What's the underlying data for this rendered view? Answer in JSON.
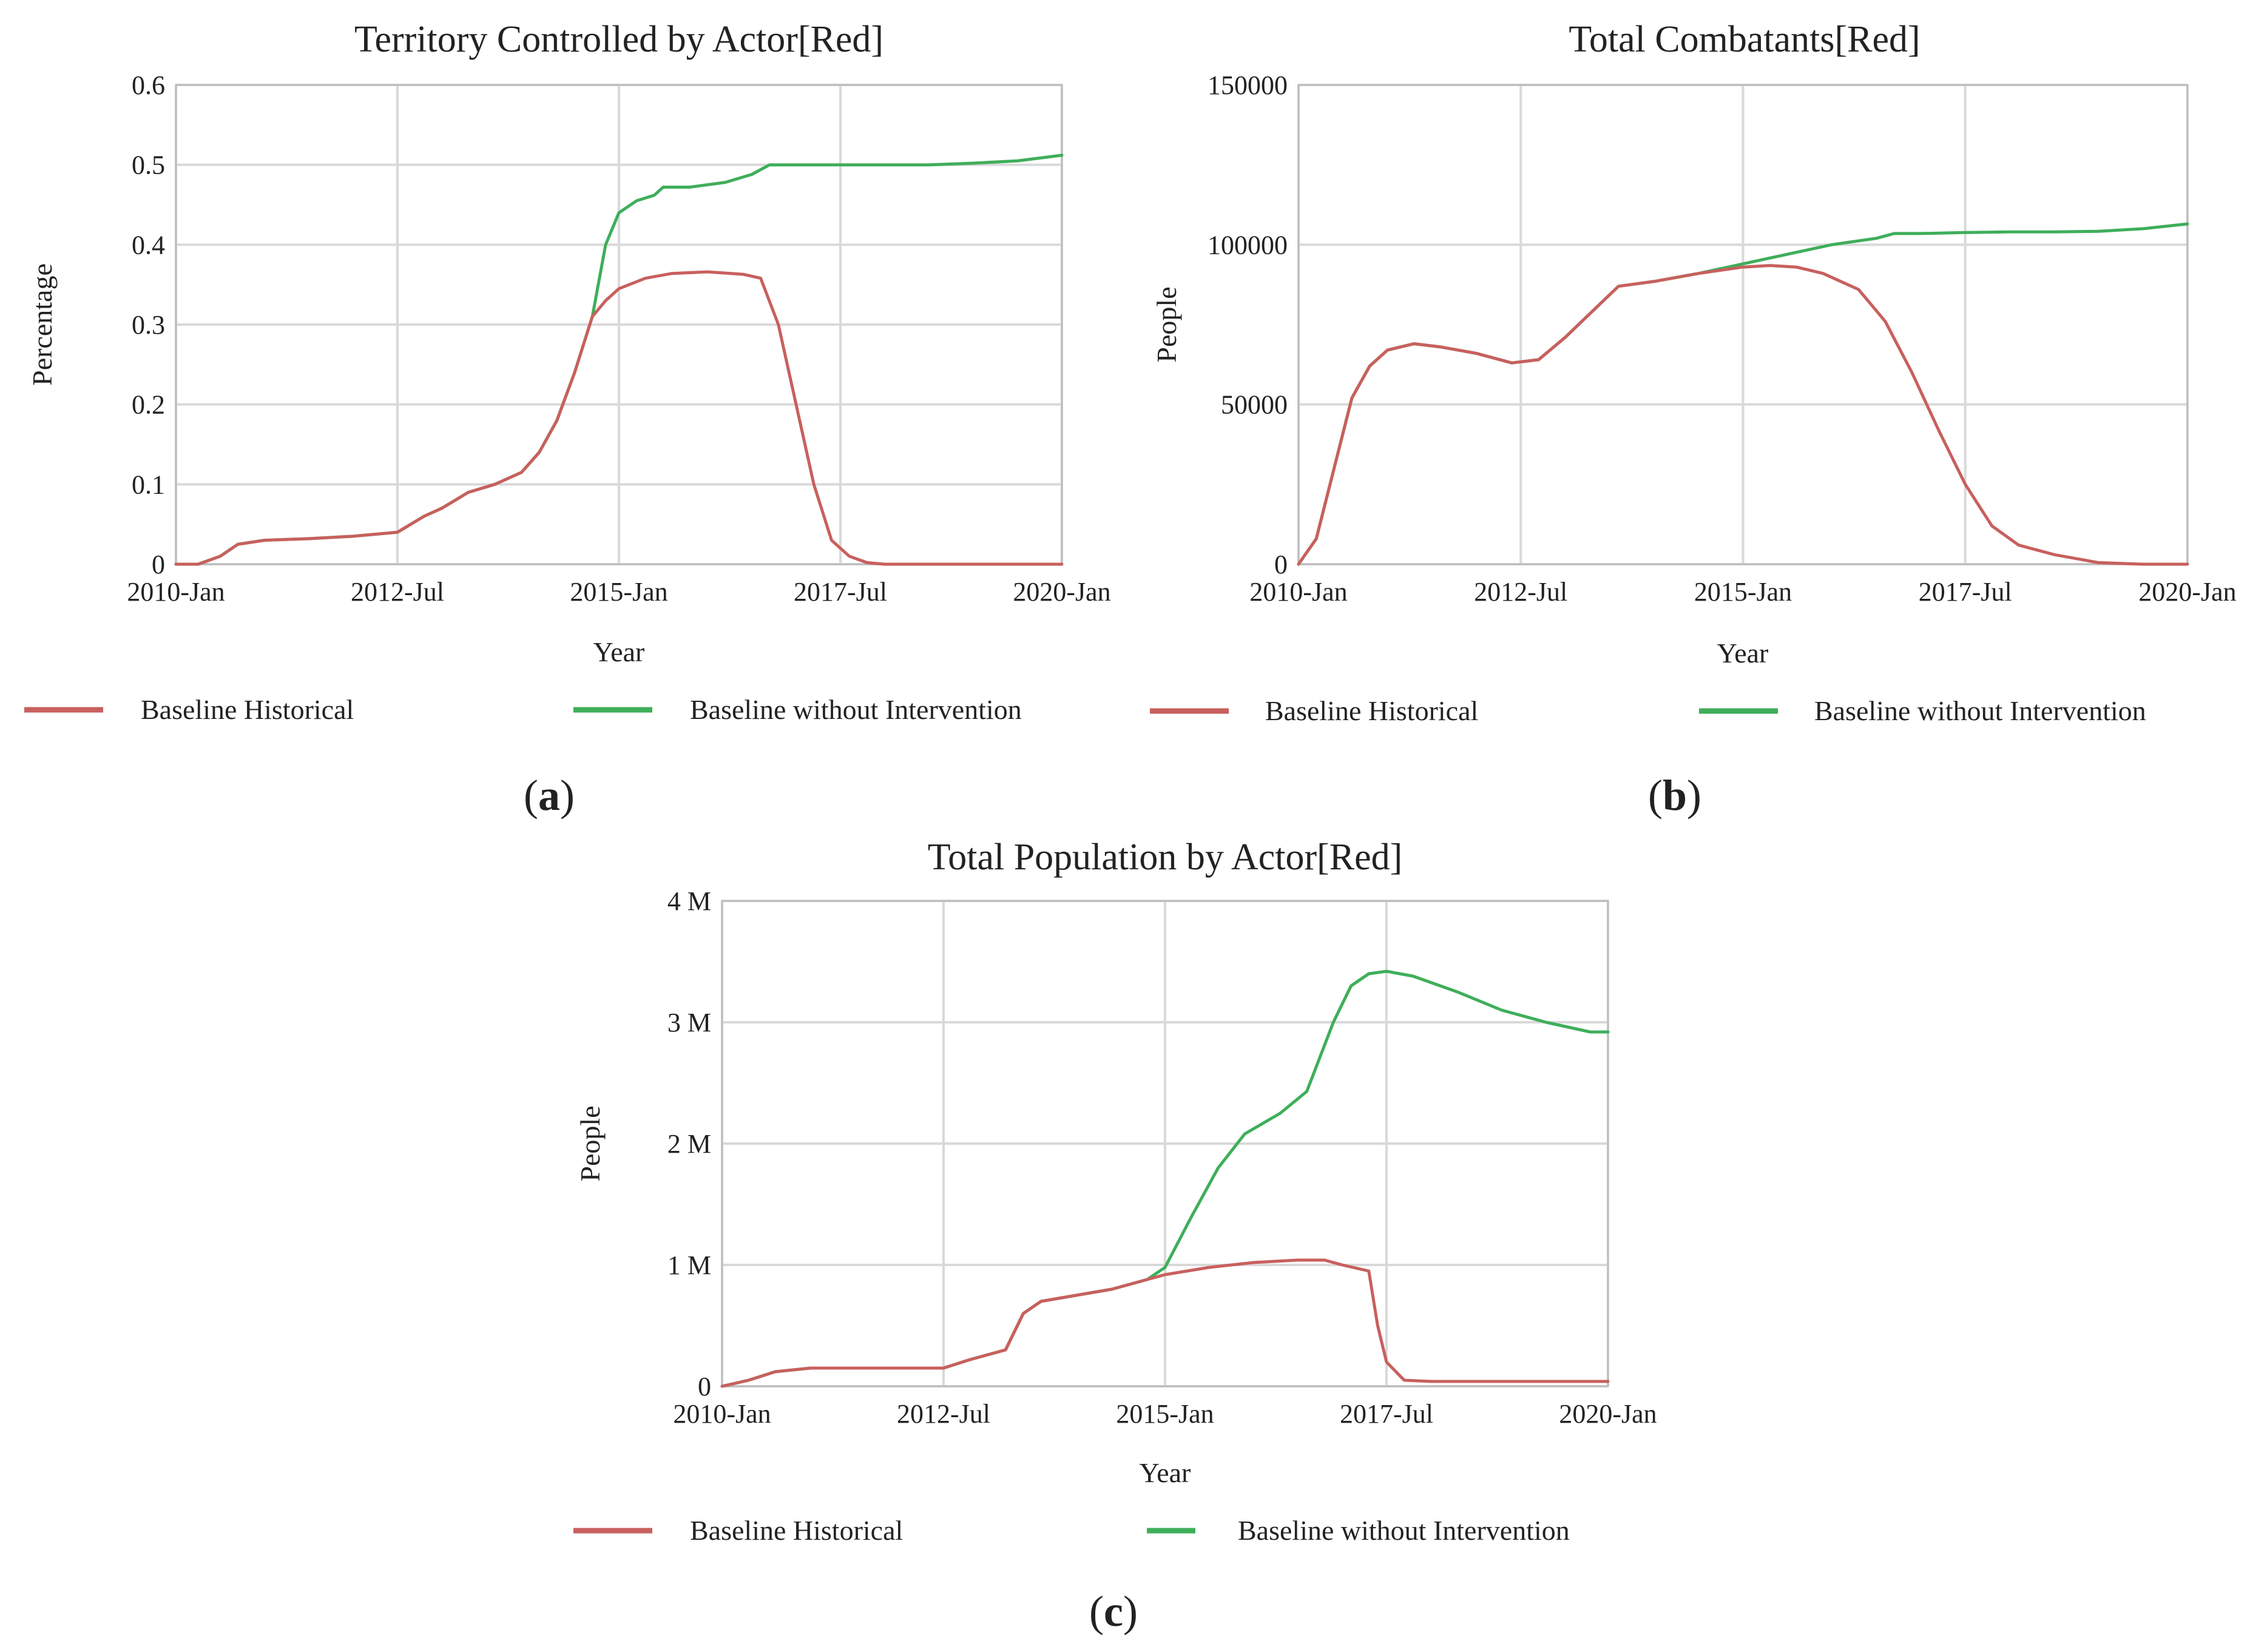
{
  "colors": {
    "historical": "#c8605e",
    "without_intervention": "#3fae5a"
  },
  "chart_data": [
    {
      "type": "line",
      "panel_label": "a",
      "title": "Territory Controlled by Actor[Red]",
      "xlabel": "Year",
      "ylabel": "Percentage",
      "xlim": [
        2010.0,
        2020.0
      ],
      "ylim": [
        0,
        0.6
      ],
      "xticks": [
        {
          "value": 2010.0,
          "label": "2010-Jan"
        },
        {
          "value": 2012.5,
          "label": "2012-Jul"
        },
        {
          "value": 2015.0,
          "label": "2015-Jan"
        },
        {
          "value": 2017.5,
          "label": "2017-Jul"
        },
        {
          "value": 2020.0,
          "label": "2020-Jan"
        }
      ],
      "yticks": [
        {
          "value": 0,
          "label": "0"
        },
        {
          "value": 0.1,
          "label": "0.1"
        },
        {
          "value": 0.2,
          "label": "0.2"
        },
        {
          "value": 0.3,
          "label": "0.3"
        },
        {
          "value": 0.4,
          "label": "0.4"
        },
        {
          "value": 0.5,
          "label": "0.5"
        },
        {
          "value": 0.6,
          "label": "0.6"
        }
      ],
      "legend": "bottom",
      "series": [
        {
          "name": "Baseline Historical",
          "x": [
            2010.0,
            2010.25,
            2010.5,
            2010.7,
            2011.0,
            2011.5,
            2012.0,
            2012.5,
            2012.8,
            2013.0,
            2013.3,
            2013.6,
            2013.9,
            2014.1,
            2014.3,
            2014.5,
            2014.7,
            2014.85,
            2015.0,
            2015.3,
            2015.6,
            2016.0,
            2016.4,
            2016.6,
            2016.8,
            2017.0,
            2017.2,
            2017.4,
            2017.6,
            2017.8,
            2018.0,
            2018.5,
            2019.0,
            2019.5,
            2020.0
          ],
          "values": [
            0.0,
            0.0,
            0.01,
            0.025,
            0.03,
            0.032,
            0.035,
            0.04,
            0.06,
            0.07,
            0.09,
            0.1,
            0.115,
            0.14,
            0.18,
            0.24,
            0.31,
            0.33,
            0.345,
            0.358,
            0.364,
            0.366,
            0.363,
            0.358,
            0.3,
            0.2,
            0.1,
            0.03,
            0.01,
            0.002,
            0.0,
            0.0,
            0.0,
            0.0,
            0.0
          ]
        },
        {
          "name": "Baseline without Intervention",
          "x": [
            2010.0,
            2010.25,
            2010.5,
            2010.7,
            2011.0,
            2011.5,
            2012.0,
            2012.5,
            2012.8,
            2013.0,
            2013.3,
            2013.6,
            2013.9,
            2014.1,
            2014.3,
            2014.5,
            2014.7,
            2014.85,
            2015.0,
            2015.2,
            2015.4,
            2015.5,
            2015.8,
            2016.2,
            2016.5,
            2016.7,
            2017.0,
            2017.5,
            2018.0,
            2018.5,
            2019.0,
            2019.5,
            2020.0
          ],
          "values": [
            0.0,
            0.0,
            0.01,
            0.025,
            0.03,
            0.032,
            0.035,
            0.04,
            0.06,
            0.07,
            0.09,
            0.1,
            0.115,
            0.14,
            0.18,
            0.24,
            0.31,
            0.4,
            0.44,
            0.455,
            0.462,
            0.472,
            0.472,
            0.478,
            0.488,
            0.5,
            0.5,
            0.5,
            0.5,
            0.5,
            0.502,
            0.505,
            0.512
          ]
        }
      ]
    },
    {
      "type": "line",
      "panel_label": "b",
      "title": "Total Combatants[Red]",
      "xlabel": "Year",
      "ylabel": "People",
      "xlim": [
        2010.0,
        2020.0
      ],
      "ylim": [
        0,
        150000
      ],
      "xticks": [
        {
          "value": 2010.0,
          "label": "2010-Jan"
        },
        {
          "value": 2012.5,
          "label": "2012-Jul"
        },
        {
          "value": 2015.0,
          "label": "2015-Jan"
        },
        {
          "value": 2017.5,
          "label": "2017-Jul"
        },
        {
          "value": 2020.0,
          "label": "2020-Jan"
        }
      ],
      "yticks": [
        {
          "value": 0,
          "label": "0"
        },
        {
          "value": 50000,
          "label": "50000"
        },
        {
          "value": 100000,
          "label": "100000"
        },
        {
          "value": 150000,
          "label": "150000"
        }
      ],
      "legend": "bottom",
      "series": [
        {
          "name": "Baseline Historical",
          "x": [
            2010.0,
            2010.2,
            2010.4,
            2010.6,
            2010.8,
            2011.0,
            2011.3,
            2011.6,
            2012.0,
            2012.4,
            2012.7,
            2013.0,
            2013.3,
            2013.6,
            2014.0,
            2014.5,
            2015.0,
            2015.3,
            2015.6,
            2015.9,
            2016.3,
            2016.6,
            2016.9,
            2017.2,
            2017.5,
            2017.8,
            2018.1,
            2018.5,
            2019.0,
            2019.5,
            2020.0
          ],
          "values": [
            0,
            8000,
            30000,
            52000,
            62000,
            67000,
            69000,
            68000,
            66000,
            63000,
            64000,
            71000,
            79000,
            87000,
            88500,
            91000,
            93000,
            93500,
            93000,
            91000,
            86000,
            76000,
            60000,
            42000,
            25000,
            12000,
            6000,
            3000,
            500,
            0,
            0
          ]
        },
        {
          "name": "Baseline without Intervention",
          "x": [
            2010.0,
            2010.2,
            2010.4,
            2010.6,
            2010.8,
            2011.0,
            2011.3,
            2011.6,
            2012.0,
            2012.4,
            2012.7,
            2013.0,
            2013.3,
            2013.6,
            2014.0,
            2014.5,
            2015.0,
            2015.5,
            2016.0,
            2016.5,
            2016.7,
            2017.0,
            2017.5,
            2018.0,
            2018.5,
            2019.0,
            2019.5,
            2020.0
          ],
          "values": [
            0,
            8000,
            30000,
            52000,
            62000,
            67000,
            69000,
            68000,
            66000,
            63000,
            64000,
            71000,
            79000,
            87000,
            88500,
            91000,
            94000,
            97000,
            100000,
            102000,
            103500,
            103500,
            103800,
            104000,
            104000,
            104200,
            105000,
            106500
          ]
        }
      ]
    },
    {
      "type": "line",
      "panel_label": "c",
      "title": "Total Population by Actor[Red]",
      "xlabel": "Year",
      "ylabel": "People",
      "xlim": [
        2010.0,
        2020.0
      ],
      "ylim": [
        0,
        4000000
      ],
      "xticks": [
        {
          "value": 2010.0,
          "label": "2010-Jan"
        },
        {
          "value": 2012.5,
          "label": "2012-Jul"
        },
        {
          "value": 2015.0,
          "label": "2015-Jan"
        },
        {
          "value": 2017.5,
          "label": "2017-Jul"
        },
        {
          "value": 2020.0,
          "label": "2020-Jan"
        }
      ],
      "yticks": [
        {
          "value": 0,
          "label": "0"
        },
        {
          "value": 1000000,
          "label": "1 M"
        },
        {
          "value": 2000000,
          "label": "2 M"
        },
        {
          "value": 3000000,
          "label": "3 M"
        },
        {
          "value": 4000000,
          "label": "4 M"
        }
      ],
      "legend": "bottom",
      "series": [
        {
          "name": "Baseline Historical",
          "x": [
            2010.0,
            2010.3,
            2010.6,
            2011.0,
            2011.5,
            2012.0,
            2012.5,
            2012.8,
            2013.2,
            2013.4,
            2013.6,
            2014.0,
            2014.4,
            2014.8,
            2015.0,
            2015.5,
            2016.0,
            2016.5,
            2016.8,
            2017.0,
            2017.3,
            2017.4,
            2017.5,
            2017.7,
            2018.0,
            2018.5,
            2019.0,
            2019.5,
            2020.0
          ],
          "values": [
            0,
            50000,
            120000,
            150000,
            150000,
            150000,
            150000,
            220000,
            300000,
            600000,
            700000,
            750000,
            800000,
            880000,
            920000,
            980000,
            1020000,
            1040000,
            1040000,
            1000000,
            950000,
            500000,
            200000,
            50000,
            40000,
            40000,
            40000,
            40000,
            40000
          ]
        },
        {
          "name": "Baseline without Intervention",
          "x": [
            2010.0,
            2010.3,
            2010.6,
            2011.0,
            2011.5,
            2012.0,
            2012.5,
            2012.8,
            2013.2,
            2013.4,
            2013.6,
            2014.0,
            2014.4,
            2014.8,
            2015.0,
            2015.3,
            2015.6,
            2015.9,
            2016.3,
            2016.6,
            2016.9,
            2017.1,
            2017.3,
            2017.5,
            2017.8,
            2018.3,
            2018.8,
            2019.3,
            2019.8,
            2020.0
          ],
          "values": [
            0,
            50000,
            120000,
            150000,
            150000,
            150000,
            150000,
            220000,
            300000,
            600000,
            700000,
            750000,
            800000,
            880000,
            980000,
            1400000,
            1800000,
            2080000,
            2250000,
            2430000,
            3000000,
            3300000,
            3400000,
            3420000,
            3380000,
            3250000,
            3100000,
            3000000,
            2920000,
            2920000
          ]
        }
      ]
    }
  ]
}
